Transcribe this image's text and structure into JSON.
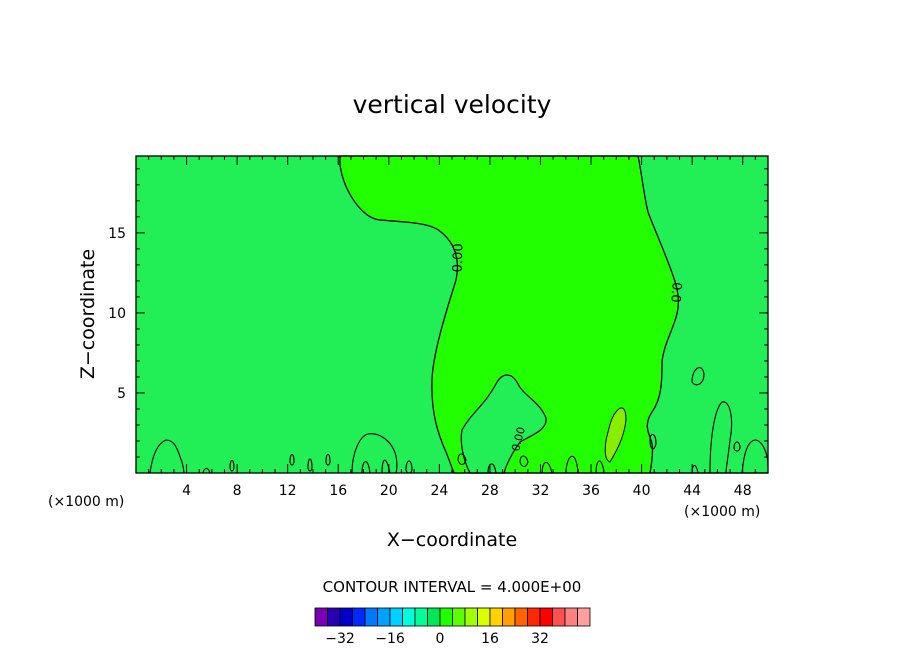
{
  "chart_data": {
    "type": "contour",
    "title": "vertical velocity",
    "xlabel": "X−coordinate",
    "ylabel": "Z−coordinate",
    "x_unit_left": "(×1000 m)",
    "x_unit_right": "(×1000 m)",
    "xlim": [
      0,
      50
    ],
    "ylim": [
      0,
      19.8
    ],
    "x_ticks": [
      4,
      8,
      12,
      16,
      20,
      24,
      28,
      32,
      36,
      40,
      44,
      48
    ],
    "x_tick_labels": [
      "4",
      "8",
      "12",
      "16",
      "20",
      "24",
      "28",
      "32",
      "36",
      "40",
      "44",
      "48"
    ],
    "y_ticks": [
      5,
      10,
      15
    ],
    "y_tick_labels": [
      "5",
      "10",
      "15"
    ],
    "contour_labels": [
      "0.00",
      "0.00",
      "0.0"
    ],
    "contour_interval_text": "CONTOUR INTERVAL = 4.000E+00",
    "colorbar": {
      "tick_values": [
        -32,
        -16,
        0,
        16,
        32
      ],
      "tick_labels": [
        "−32",
        "−16",
        "0",
        "16",
        "32"
      ],
      "colors": [
        "#7a00b4",
        "#2800b4",
        "#0000c8",
        "#0028ff",
        "#0078ff",
        "#00a0ff",
        "#00d2ff",
        "#00ffdc",
        "#00ff96",
        "#00e65a",
        "#20ff00",
        "#5aff00",
        "#a0ff00",
        "#dcff00",
        "#ffd200",
        "#ffa000",
        "#ff6400",
        "#ff2800",
        "#ff0000",
        "#ff5050",
        "#ff8080",
        "#ffa0a0"
      ]
    },
    "background_color": "#22ee55",
    "positive_region_color": "#22ff00",
    "strong_updraft_color": "#88ee00"
  }
}
